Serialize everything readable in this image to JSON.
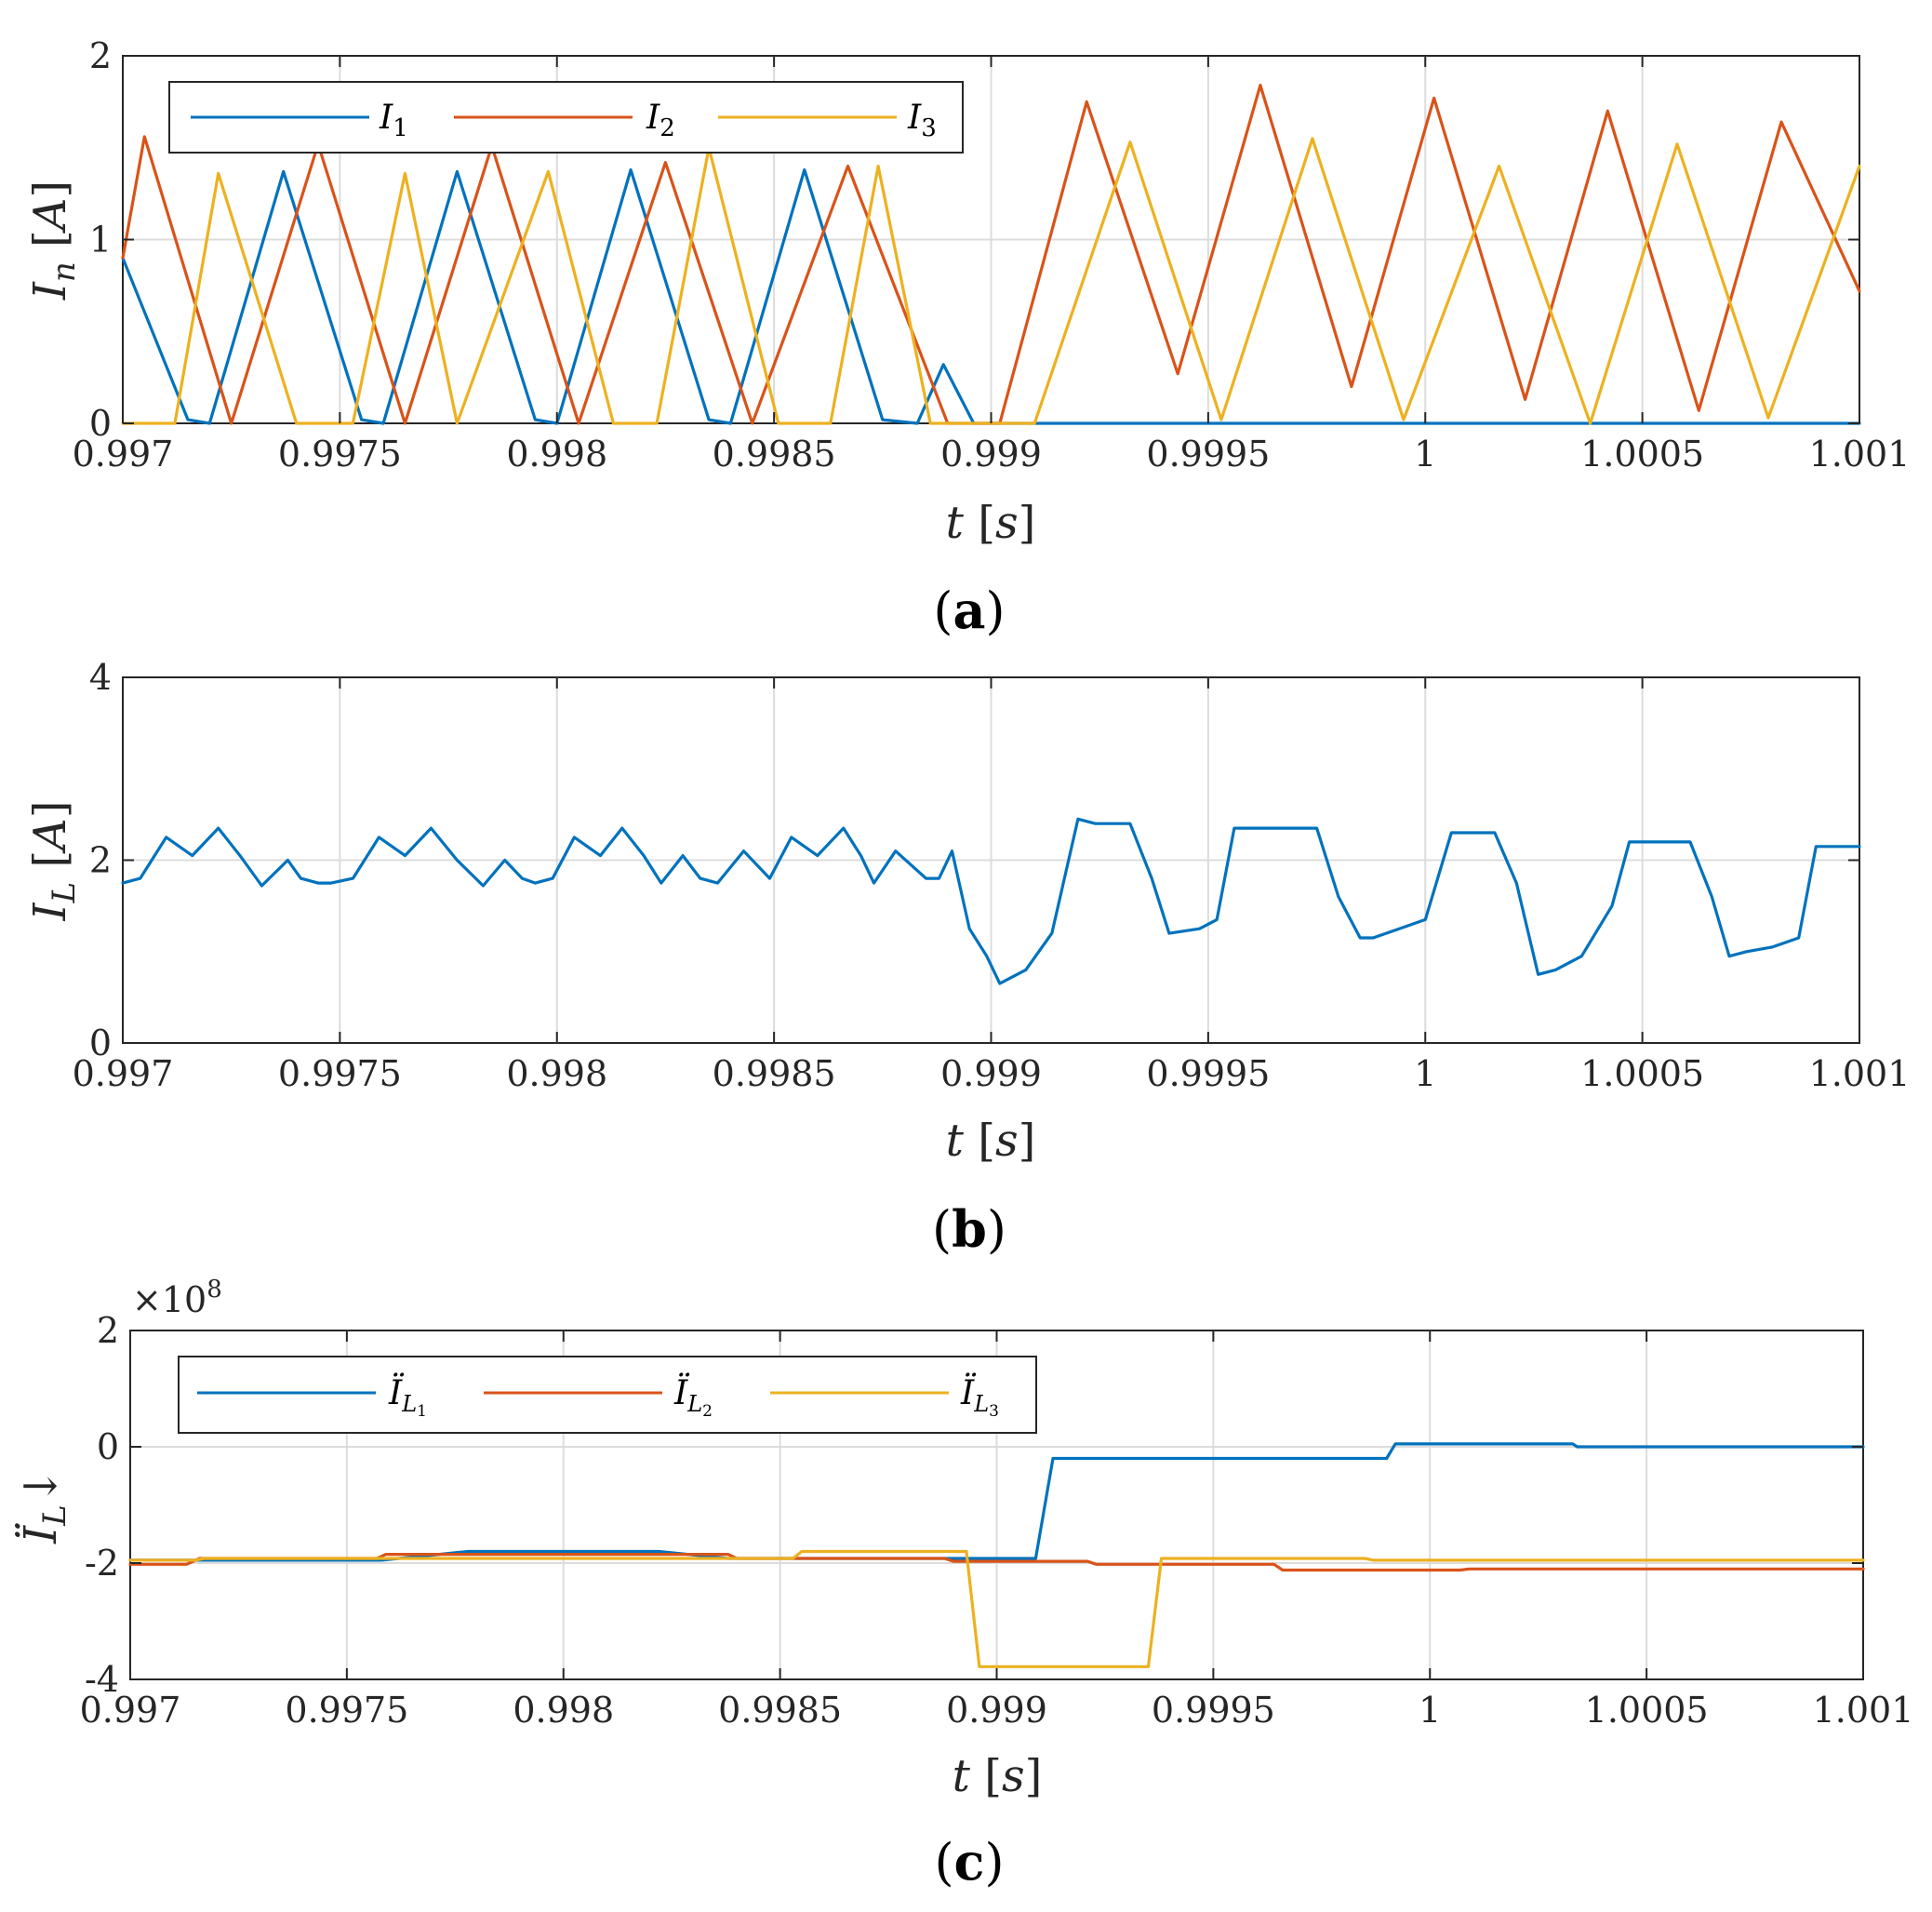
{
  "colors": {
    "I1": "#0072bd",
    "I2": "#d95319",
    "I3": "#edb120"
  },
  "chart_data": [
    {
      "id": "a",
      "type": "line",
      "caption_letter": "a",
      "xlabel": "t [s]",
      "ylabel": "I_n [A]",
      "xlim": [
        0.997,
        1.001
      ],
      "ylim": [
        0,
        2
      ],
      "xticks": [
        0.997,
        0.9975,
        0.998,
        0.9985,
        0.999,
        0.9995,
        1,
        1.0005,
        1.001
      ],
      "xtick_labels": [
        "0.997",
        "0.9975",
        "0.998",
        "0.9985",
        "0.999",
        "0.9995",
        "1",
        "1.0005",
        "1.001"
      ],
      "yticks": [
        0,
        1,
        2
      ],
      "ytick_labels": [
        "0",
        "1",
        "2"
      ],
      "grid": true,
      "legend": {
        "placement": "top-left",
        "orientation": "horizontal"
      },
      "series": [
        {
          "name": "I_1",
          "color_key": "I1",
          "x": [
            0.997,
            0.99715,
            0.9972,
            0.99737,
            0.99755,
            0.9976,
            0.99777,
            0.99795,
            0.998,
            0.99817,
            0.99835,
            0.9984,
            0.99857,
            0.99875,
            0.99883,
            0.99889,
            0.99896,
            1.001
          ],
          "y": [
            0.9,
            0.02,
            0.0,
            1.37,
            0.02,
            0.0,
            1.37,
            0.02,
            0.0,
            1.38,
            0.02,
            0.0,
            1.38,
            0.02,
            0.0,
            0.32,
            0.0,
            0.0
          ]
        },
        {
          "name": "I_2",
          "color_key": "I2",
          "x": [
            0.997,
            0.99705,
            0.99725,
            0.99745,
            0.99765,
            0.99785,
            0.99805,
            0.99825,
            0.99845,
            0.99867,
            0.9989,
            0.99902,
            0.99922,
            0.99943,
            0.99962,
            0.99983,
            1.00002,
            1.00023,
            1.00042,
            1.00063,
            1.00082,
            1.001
          ],
          "y": [
            0.9,
            1.56,
            0.0,
            1.52,
            0.0,
            1.51,
            0.0,
            1.42,
            0.0,
            1.4,
            0.0,
            0.0,
            1.75,
            0.27,
            1.84,
            0.2,
            1.77,
            0.13,
            1.7,
            0.07,
            1.64,
            0.72
          ]
        },
        {
          "name": "I_3",
          "color_key": "I3",
          "x": [
            0.997,
            0.99712,
            0.99722,
            0.9974,
            0.99753,
            0.99765,
            0.99777,
            0.99798,
            0.99813,
            0.99823,
            0.99835,
            0.99851,
            0.99863,
            0.99874,
            0.99886,
            0.99897,
            0.9991,
            0.99932,
            0.99953,
            0.99974,
            0.99995,
            1.00017,
            1.00038,
            1.00058,
            1.00079,
            1.001
          ],
          "y": [
            0.0,
            0.0,
            1.36,
            0.0,
            0.0,
            1.36,
            0.0,
            1.37,
            0.0,
            0.0,
            1.5,
            0.0,
            0.0,
            1.4,
            0.0,
            0.0,
            0.0,
            1.53,
            0.02,
            1.55,
            0.02,
            1.4,
            0.0,
            1.52,
            0.03,
            1.4
          ]
        }
      ]
    },
    {
      "id": "b",
      "type": "line",
      "caption_letter": "b",
      "xlabel": "t [s]",
      "ylabel": "I_L [A]",
      "xlim": [
        0.997,
        1.001
      ],
      "ylim": [
        0,
        4
      ],
      "xticks": [
        0.997,
        0.9975,
        0.998,
        0.9985,
        0.999,
        0.9995,
        1,
        1.0005,
        1.001
      ],
      "xtick_labels": [
        "0.997",
        "0.9975",
        "0.998",
        "0.9985",
        "0.999",
        "0.9995",
        "1",
        "1.0005",
        "1.001"
      ],
      "yticks": [
        0,
        2,
        4
      ],
      "ytick_labels": [
        "0",
        "2",
        "4"
      ],
      "grid": true,
      "series": [
        {
          "name": "I_L",
          "color_key": "I1",
          "x": [
            0.997,
            0.99704,
            0.9971,
            0.99716,
            0.99722,
            0.99727,
            0.99732,
            0.99738,
            0.99741,
            0.99745,
            0.99748,
            0.99753,
            0.99759,
            0.99765,
            0.99771,
            0.99777,
            0.99783,
            0.99788,
            0.99792,
            0.99795,
            0.99799,
            0.99804,
            0.9981,
            0.99815,
            0.9982,
            0.99824,
            0.99829,
            0.99833,
            0.99837,
            0.99843,
            0.99849,
            0.99854,
            0.9986,
            0.99866,
            0.9987,
            0.99873,
            0.99878,
            0.99885,
            0.99888,
            0.99891,
            0.99895,
            0.99899,
            0.99902,
            0.99908,
            0.99914,
            0.9992,
            0.99924,
            0.99932,
            0.99937,
            0.99941,
            0.99948,
            0.99952,
            0.99956,
            0.99961,
            0.99966,
            0.99975,
            0.9998,
            0.99985,
            0.99988,
            0.99994,
            1.0,
            1.00006,
            1.0001,
            1.00016,
            1.00021,
            1.00026,
            1.0003,
            1.00036,
            1.00043,
            1.00047,
            1.00052,
            1.00061,
            1.00066,
            1.0007,
            1.00074,
            1.0008,
            1.00086,
            1.0009,
            1.00096,
            1.001
          ],
          "y": [
            1.75,
            1.8,
            2.25,
            2.05,
            2.35,
            2.05,
            1.72,
            2.0,
            1.8,
            1.75,
            1.75,
            1.8,
            2.25,
            2.05,
            2.35,
            2.0,
            1.72,
            2.0,
            1.8,
            1.75,
            1.8,
            2.25,
            2.05,
            2.35,
            2.05,
            1.75,
            2.05,
            1.8,
            1.75,
            2.1,
            1.8,
            2.25,
            2.05,
            2.35,
            2.05,
            1.75,
            2.1,
            1.8,
            1.8,
            2.1,
            1.25,
            0.95,
            0.65,
            0.8,
            1.2,
            2.45,
            2.4,
            2.4,
            1.8,
            1.2,
            1.25,
            1.35,
            2.35,
            2.35,
            2.35,
            2.35,
            1.6,
            1.15,
            1.15,
            1.25,
            1.35,
            2.3,
            2.3,
            2.3,
            1.75,
            0.75,
            0.8,
            0.95,
            1.5,
            2.2,
            2.2,
            2.2,
            1.6,
            0.95,
            1.0,
            1.05,
            1.15,
            2.15,
            2.15,
            2.15
          ]
        }
      ]
    },
    {
      "id": "c",
      "type": "line",
      "caption_letter": "c",
      "xlabel": "t [s]",
      "ylabel": "Ï_L↓",
      "exponent_label": "×10",
      "exponent_power": "8",
      "xlim": [
        0.997,
        1.001
      ],
      "ylim": [
        -4,
        2
      ],
      "xticks": [
        0.997,
        0.9975,
        0.998,
        0.9985,
        0.999,
        0.9995,
        1,
        1.0005,
        1.001
      ],
      "xtick_labels": [
        "0.997",
        "0.9975",
        "0.998",
        "0.9985",
        "0.999",
        "0.9995",
        "1",
        "1.0005",
        "1.001"
      ],
      "yticks": [
        -4,
        -2,
        0,
        2
      ],
      "ytick_labels": [
        "-4",
        "-2",
        "0",
        "2"
      ],
      "grid": true,
      "legend": {
        "placement": "top-left",
        "orientation": "horizontal"
      },
      "series": [
        {
          "name": "Ï_L1",
          "color_key": "I1",
          "x": [
            0.997,
            0.99758,
            0.99778,
            0.99822,
            0.99838,
            0.99909,
            0.99913,
            0.9999,
            0.99992,
            1.00033,
            1.00034,
            1.001
          ],
          "y": [
            -1.95,
            -1.95,
            -1.8,
            -1.8,
            -1.92,
            -1.92,
            -0.2,
            -0.2,
            0.05,
            0.05,
            0.0,
            0.0
          ]
        },
        {
          "name": "Ï_L2",
          "color_key": "I2",
          "x": [
            0.997,
            0.99713,
            0.99716,
            0.99757,
            0.99759,
            0.99838,
            0.9984,
            0.99888,
            0.9989,
            0.99921,
            0.99923,
            0.99964,
            0.99966,
            1.00007,
            1.00009,
            1.001
          ],
          "y": [
            -2.02,
            -2.02,
            -1.92,
            -1.92,
            -1.85,
            -1.85,
            -1.92,
            -1.92,
            -1.97,
            -1.97,
            -2.02,
            -2.02,
            -2.12,
            -2.12,
            -2.1,
            -2.1
          ]
        },
        {
          "name": "Ï_L3",
          "color_key": "I3",
          "x": [
            0.997,
            0.99715,
            0.99717,
            0.99853,
            0.99855,
            0.99893,
            0.99896,
            0.99935,
            0.99938,
            0.99985,
            0.99987,
            1.001
          ],
          "y": [
            -1.95,
            -1.95,
            -1.92,
            -1.92,
            -1.8,
            -1.8,
            -3.78,
            -3.78,
            -1.92,
            -1.92,
            -1.95,
            -1.95
          ]
        }
      ]
    }
  ]
}
